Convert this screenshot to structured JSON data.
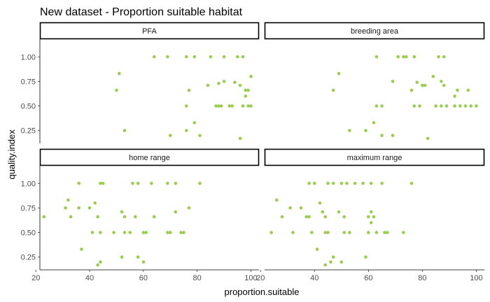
{
  "chart_data": {
    "type": "scatter",
    "title": "New dataset - Proportion suitable habitat",
    "xlabel": "proportion.suitable",
    "ylabel": "quality.index",
    "xlim": [
      21.5,
      103
    ],
    "ylim": [
      0.12,
      1.18
    ],
    "x_ticks": [
      20,
      40,
      60,
      80,
      100
    ],
    "y_ticks": [
      0.25,
      0.5,
      0.75,
      1.0
    ],
    "x_tick_labels": [
      "20",
      "40",
      "60",
      "80",
      "100"
    ],
    "y_tick_labels": [
      "0.25",
      "0.50",
      "0.75",
      "1.00"
    ],
    "grid": false,
    "point_color": "#9acd4f",
    "panels": [
      {
        "name": "PFA",
        "points": [
          [
            64,
            1.0
          ],
          [
            69,
            1.0
          ],
          [
            76,
            1.0
          ],
          [
            79,
            1.0
          ],
          [
            85,
            1.0
          ],
          [
            90,
            1.0
          ],
          [
            95,
            1.0
          ],
          [
            97,
            1.0
          ],
          [
            51,
            0.83
          ],
          [
            50,
            0.66
          ],
          [
            77,
            0.66
          ],
          [
            84,
            0.71
          ],
          [
            88,
            0.73
          ],
          [
            90,
            0.75
          ],
          [
            94,
            0.74
          ],
          [
            96,
            0.71
          ],
          [
            100,
            0.8
          ],
          [
            98,
            0.66
          ],
          [
            99,
            0.66
          ],
          [
            98,
            0.6
          ],
          [
            87,
            0.5
          ],
          [
            88,
            0.5
          ],
          [
            89,
            0.5
          ],
          [
            92,
            0.5
          ],
          [
            93,
            0.5
          ],
          [
            97,
            0.5
          ],
          [
            99,
            0.5
          ],
          [
            100,
            0.5
          ],
          [
            76,
            0.5
          ],
          [
            79,
            0.33
          ],
          [
            76,
            0.25
          ],
          [
            53,
            0.25
          ],
          [
            70,
            0.2
          ],
          [
            81,
            0.2
          ],
          [
            96,
            0.17
          ]
        ]
      },
      {
        "name": "breeding area",
        "points": [
          [
            63,
            1.0
          ],
          [
            71,
            1.0
          ],
          [
            73,
            1.0
          ],
          [
            74,
            1.0
          ],
          [
            77,
            1.0
          ],
          [
            86,
            1.0
          ],
          [
            88,
            1.0
          ],
          [
            49,
            0.83
          ],
          [
            47,
            0.66
          ],
          [
            69,
            0.75
          ],
          [
            78,
            0.74
          ],
          [
            80,
            0.71
          ],
          [
            81,
            0.71
          ],
          [
            84,
            0.8
          ],
          [
            87,
            0.75
          ],
          [
            88,
            0.71
          ],
          [
            76,
            0.66
          ],
          [
            93,
            0.66
          ],
          [
            97,
            0.66
          ],
          [
            92,
            0.6
          ],
          [
            63,
            0.5
          ],
          [
            65,
            0.5
          ],
          [
            77,
            0.5
          ],
          [
            79,
            0.5
          ],
          [
            85,
            0.5
          ],
          [
            87,
            0.5
          ],
          [
            89,
            0.5
          ],
          [
            92,
            0.5
          ],
          [
            94,
            0.5
          ],
          [
            96,
            0.5
          ],
          [
            98,
            0.5
          ],
          [
            100,
            0.5
          ],
          [
            62,
            0.33
          ],
          [
            59,
            0.25
          ],
          [
            53,
            0.25
          ],
          [
            65,
            0.2
          ],
          [
            69,
            0.2
          ],
          [
            82,
            0.17
          ]
        ]
      },
      {
        "name": "home range",
        "points": [
          [
            36,
            1.0
          ],
          [
            44,
            1.0
          ],
          [
            45,
            1.0
          ],
          [
            56,
            1.0
          ],
          [
            58,
            1.0
          ],
          [
            63,
            1.0
          ],
          [
            69,
            1.0
          ],
          [
            72,
            1.0
          ],
          [
            81,
            1.0
          ],
          [
            32,
            0.83
          ],
          [
            42,
            0.8
          ],
          [
            31,
            0.75
          ],
          [
            36,
            0.75
          ],
          [
            40,
            0.75
          ],
          [
            52,
            0.71
          ],
          [
            53,
            0.66
          ],
          [
            57,
            0.66
          ],
          [
            64,
            0.66
          ],
          [
            72,
            0.71
          ],
          [
            77,
            0.75
          ],
          [
            33,
            0.66
          ],
          [
            23,
            0.66
          ],
          [
            43,
            0.66
          ],
          [
            41,
            0.5
          ],
          [
            44,
            0.5
          ],
          [
            49,
            0.5
          ],
          [
            53,
            0.5
          ],
          [
            55,
            0.5
          ],
          [
            60,
            0.5
          ],
          [
            61,
            0.5
          ],
          [
            69,
            0.5
          ],
          [
            70,
            0.5
          ],
          [
            74,
            0.5
          ],
          [
            75,
            0.5
          ],
          [
            37,
            0.33
          ],
          [
            52,
            0.25
          ],
          [
            58,
            0.25
          ],
          [
            60,
            0.2
          ],
          [
            44,
            0.2
          ],
          [
            43,
            0.17
          ]
        ]
      },
      {
        "name": "maximum range",
        "points": [
          [
            38,
            1.0
          ],
          [
            40,
            1.0
          ],
          [
            45,
            1.0
          ],
          [
            47,
            1.0
          ],
          [
            50,
            1.0
          ],
          [
            52,
            1.0
          ],
          [
            55,
            1.0
          ],
          [
            58,
            1.0
          ],
          [
            61,
            1.0
          ],
          [
            65,
            1.0
          ],
          [
            76,
            1.0
          ],
          [
            26,
            0.83
          ],
          [
            42,
            0.8
          ],
          [
            31,
            0.75
          ],
          [
            35,
            0.75
          ],
          [
            37,
            0.66
          ],
          [
            43,
            0.71
          ],
          [
            44,
            0.66
          ],
          [
            49,
            0.71
          ],
          [
            51,
            0.66
          ],
          [
            61,
            0.71
          ],
          [
            62,
            0.66
          ],
          [
            60,
            0.66
          ],
          [
            28,
            0.66
          ],
          [
            38,
            0.66
          ],
          [
            61,
            0.6
          ],
          [
            24,
            0.5
          ],
          [
            32,
            0.5
          ],
          [
            39,
            0.5
          ],
          [
            44,
            0.5
          ],
          [
            45,
            0.5
          ],
          [
            51,
            0.5
          ],
          [
            53,
            0.5
          ],
          [
            60,
            0.5
          ],
          [
            63,
            0.5
          ],
          [
            66,
            0.5
          ],
          [
            67,
            0.5
          ],
          [
            73,
            0.5
          ],
          [
            41,
            0.33
          ],
          [
            47,
            0.25
          ],
          [
            59,
            0.25
          ],
          [
            46,
            0.2
          ],
          [
            50,
            0.2
          ],
          [
            44,
            0.17
          ]
        ]
      }
    ]
  }
}
